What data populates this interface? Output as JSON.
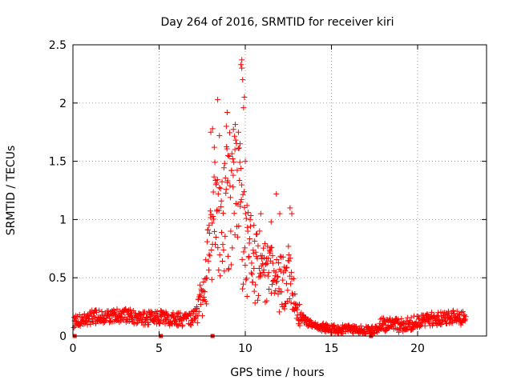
{
  "chart_data": {
    "type": "scatter",
    "title": "Day 264 of 2016, SRMTID for receiver kiri",
    "xlabel": "GPS time / hours",
    "ylabel": "SRMTID / TECUs",
    "xlim": [
      0,
      24
    ],
    "ylim": [
      0,
      2.5
    ],
    "xticks": [
      "0",
      "5",
      "10",
      "15",
      "20"
    ],
    "yticks": [
      "0",
      "0.5",
      "1",
      "1.5",
      "2",
      "2.5"
    ],
    "grid": true,
    "legend": "none",
    "marker": "+",
    "color": "#ff0000",
    "zero_markers_x": [
      0.1,
      5.1,
      8.1,
      17.3
    ],
    "baseline": [
      [
        0.0,
        0.13
      ],
      [
        1.0,
        0.16
      ],
      [
        2.0,
        0.17
      ],
      [
        3.0,
        0.18
      ],
      [
        4.0,
        0.15
      ],
      [
        5.0,
        0.16
      ],
      [
        6.0,
        0.14
      ],
      [
        6.8,
        0.14
      ],
      [
        7.3,
        0.25
      ],
      [
        7.7,
        0.45
      ],
      [
        8.0,
        0.8
      ],
      [
        8.5,
        1.05
      ],
      [
        9.0,
        1.15
      ],
      [
        9.5,
        1.2
      ],
      [
        10.0,
        0.75
      ],
      [
        10.5,
        0.6
      ],
      [
        11.0,
        0.55
      ],
      [
        11.5,
        0.52
      ],
      [
        12.0,
        0.45
      ],
      [
        12.5,
        0.5
      ],
      [
        13.0,
        0.2
      ],
      [
        13.5,
        0.13
      ],
      [
        14.0,
        0.09
      ],
      [
        15.0,
        0.06
      ],
      [
        16.0,
        0.06
      ],
      [
        17.0,
        0.05
      ],
      [
        17.5,
        0.05
      ],
      [
        18.0,
        0.1
      ],
      [
        19.0,
        0.09
      ],
      [
        20.0,
        0.12
      ],
      [
        21.0,
        0.15
      ],
      [
        22.0,
        0.16
      ],
      [
        22.8,
        0.15
      ]
    ],
    "peaks": [
      [
        8.0,
        1.75
      ],
      [
        8.1,
        1.78
      ],
      [
        8.2,
        1.62
      ],
      [
        8.4,
        2.03
      ],
      [
        8.5,
        1.72
      ],
      [
        8.9,
        1.8
      ],
      [
        8.95,
        1.92
      ],
      [
        9.0,
        1.55
      ],
      [
        9.2,
        1.42
      ],
      [
        9.4,
        1.6
      ],
      [
        9.6,
        1.75
      ],
      [
        9.7,
        1.65
      ],
      [
        9.75,
        2.33
      ],
      [
        9.8,
        2.3
      ],
      [
        9.8,
        2.37
      ],
      [
        9.85,
        2.2
      ],
      [
        9.9,
        1.96
      ],
      [
        9.95,
        2.05
      ],
      [
        10.0,
        1.5
      ],
      [
        10.1,
        1.12
      ],
      [
        10.5,
        0.95
      ],
      [
        10.9,
        1.05
      ],
      [
        11.5,
        0.98
      ],
      [
        11.8,
        1.22
      ],
      [
        12.0,
        1.05
      ],
      [
        12.6,
        1.1
      ],
      [
        12.7,
        1.05
      ],
      [
        8.3,
        1.3
      ],
      [
        9.3,
        1.38
      ],
      [
        7.9,
        0.95
      ]
    ]
  }
}
